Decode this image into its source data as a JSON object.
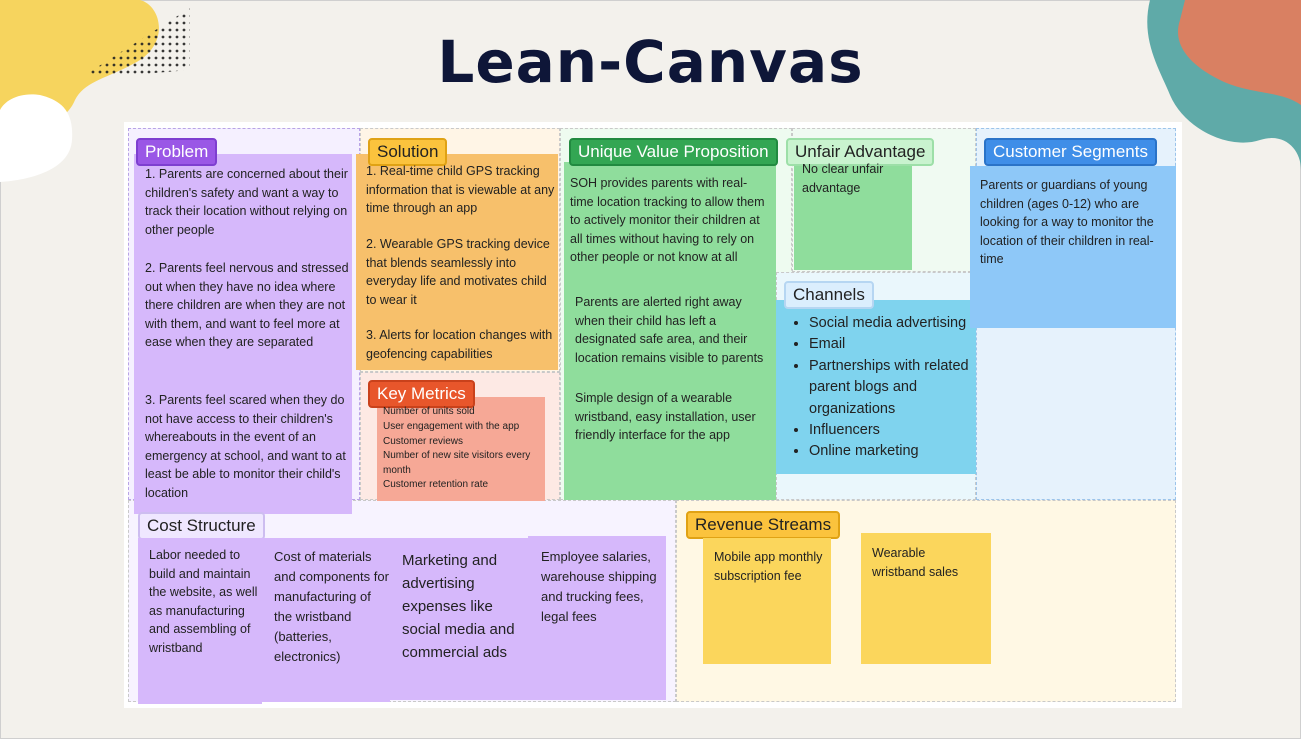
{
  "slide": {
    "title": "Lean-Canvas"
  },
  "colors": {
    "background": "#f3f1ec",
    "title": "#0e1638",
    "purple_note": "#d6b8fb",
    "orange_note": "#f7c06b",
    "green_note": "#8fdd9c",
    "blue_note": "#8ec8f8",
    "teal_note": "#7fd3ee",
    "red_note": "#f6a896",
    "yellow_note": "#fbd65c"
  },
  "problem": {
    "label": "Problem",
    "notes": [
      "1. Parents are concerned about their children's safety and want a way to track their location without relying on other people",
      "2. Parents feel nervous and stressed out when they have no idea where there children are when they are not with them, and want to feel more at ease when they are separated",
      "3. Parents feel scared when they do not have access to their children's whereabouts in the event of an emergency at school, and want to at least be able to monitor their child's location"
    ]
  },
  "solution": {
    "label": "Solution",
    "notes": [
      "1. Real-time child GPS tracking information that is viewable at any time through an app",
      "2. Wearable GPS tracking device that blends seamlessly into everyday life and motivates child to wear it",
      "3. Alerts for location changes with geofencing capabilities"
    ]
  },
  "key_metrics": {
    "label": "Key Metrics",
    "items": [
      "Number of units sold",
      "User engagement with the app",
      "Customer reviews",
      "Number of new site visitors every month",
      "Customer retention rate"
    ]
  },
  "uvp": {
    "label": "Unique Value Proposition",
    "note_1": "SOH provides parents with real-time location tracking to allow them to actively monitor their children at all times without having to rely on other people or not know at all",
    "note_2": "Parents are alerted right away when their child has left a designated safe area, and their location remains visible to parents",
    "note_3": "Simple design of a wearable wristband, easy installation, user friendly interface for the app"
  },
  "unfair_advantage": {
    "label": "Unfair Advantage",
    "note": "No clear unfair advantage"
  },
  "channels": {
    "label": "Channels",
    "items": [
      "Social media advertising",
      "Email",
      "Partnerships with related parent blogs and organizations",
      "Influencers",
      "Online marketing"
    ]
  },
  "customer_segments": {
    "label": "Customer Segments",
    "note": "Parents or guardians of young children (ages 0-12) who are looking for a way to monitor the location of their children in real-time"
  },
  "cost_structure": {
    "label": "Cost Structure",
    "notes": [
      "Labor needed to build and maintain the website, as well as manufacturing and assembling of wristband",
      "Cost of materials and components for manufacturing of the wristband (batteries, electronics)",
      "Marketing and advertising expenses like social media and commercial ads",
      "Employee salaries, warehouse shipping and trucking fees, legal fees"
    ]
  },
  "revenue_streams": {
    "label": "Revenue Streams",
    "notes": [
      "Mobile app monthly subscription fee",
      "Wearable wristband sales"
    ]
  }
}
